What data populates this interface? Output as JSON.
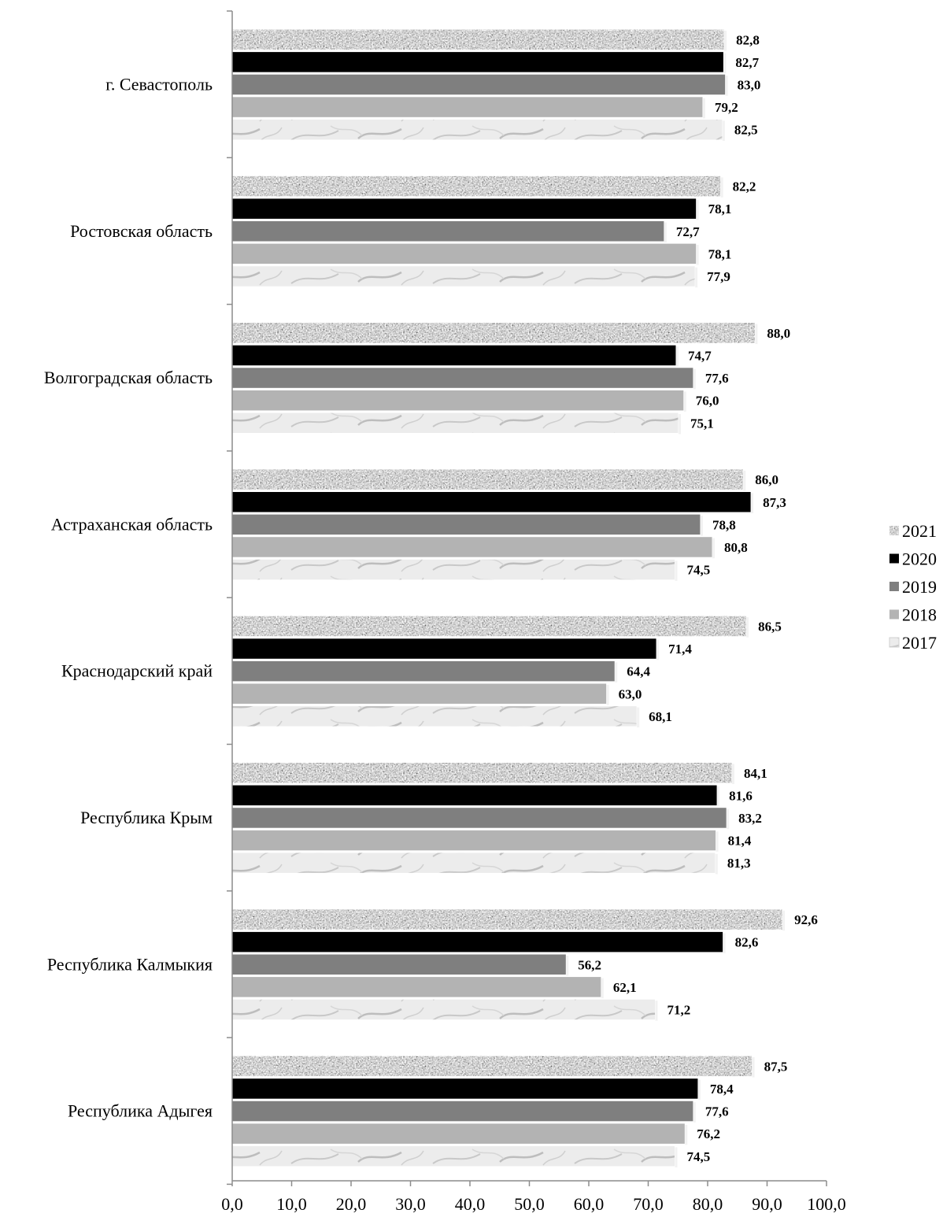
{
  "chart_data": {
    "type": "bar",
    "orientation": "horizontal",
    "categories": [
      "г. Севастополь",
      "Ростовская область",
      "Волгоградская область",
      "Астраханская область",
      "Краснодарский край",
      "Республика Крым",
      "Республика Калмыкия",
      "Республика Адыгея"
    ],
    "series": [
      {
        "name": "2021",
        "color": "#9a9a9a",
        "pattern": "granite",
        "labels": [
          "82,8",
          "82,2",
          "88,0",
          "86,0",
          "86,5",
          "84,1",
          "92,6",
          "87,5"
        ],
        "values": [
          82.8,
          82.2,
          88.0,
          86.0,
          86.5,
          84.1,
          92.6,
          87.5
        ]
      },
      {
        "name": "2020",
        "color": "#000000",
        "pattern": "solid",
        "labels": [
          "82,7",
          "78,1",
          "74,7",
          "87,3",
          "71,4",
          "81,6",
          "82,6",
          "78,4"
        ],
        "values": [
          82.7,
          78.1,
          74.7,
          87.3,
          71.4,
          81.6,
          82.6,
          78.4
        ]
      },
      {
        "name": "2019",
        "color": "#7f7f7f",
        "pattern": "solid",
        "labels": [
          "83,0",
          "72,7",
          "77,6",
          "78,8",
          "64,4",
          "83,2",
          "56,2",
          "77,6"
        ],
        "values": [
          83.0,
          72.7,
          77.6,
          78.8,
          64.4,
          83.2,
          56.2,
          77.6
        ]
      },
      {
        "name": "2018",
        "color": "#b3b3b3",
        "pattern": "solid",
        "labels": [
          "79,2",
          "78,1",
          "76,0",
          "80,8",
          "63,0",
          "81,4",
          "62,1",
          "76,2"
        ],
        "values": [
          79.2,
          78.1,
          76.0,
          80.8,
          63.0,
          81.4,
          62.1,
          76.2
        ]
      },
      {
        "name": "2017",
        "color": "#ececec",
        "pattern": "marble",
        "labels": [
          "82,5",
          "77,9",
          "75,1",
          "74,5",
          "68,1",
          "81,3",
          "71,2",
          "74,5"
        ],
        "values": [
          82.5,
          77.9,
          75.1,
          74.5,
          68.1,
          81.3,
          71.2,
          74.5
        ]
      }
    ],
    "xlim": [
      0,
      100
    ],
    "x_ticks": [
      "0,0",
      "10,0",
      "20,0",
      "30,0",
      "40,0",
      "50,0",
      "60,0",
      "70,0",
      "80,0",
      "90,0",
      "100,0"
    ],
    "legend": {
      "position": "right",
      "order": [
        "2021",
        "2020",
        "2019",
        "2018",
        "2017"
      ]
    },
    "grid": false,
    "title": "",
    "xlabel": "",
    "ylabel": ""
  }
}
